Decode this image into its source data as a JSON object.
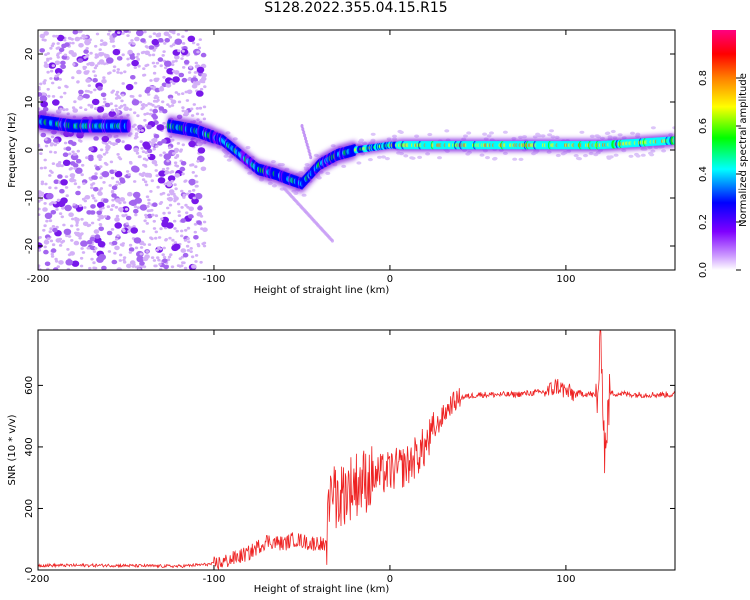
{
  "title": "S128.2022.355.04.15.R15",
  "chart_data": [
    {
      "type": "heatmap",
      "xlabel": "Height of straight line (km)",
      "ylabel": "Frequency (Hz)",
      "xlim": [
        -200,
        162
      ],
      "ylim": [
        -25,
        25
      ],
      "xticks": [
        -200,
        -100,
        0,
        100
      ],
      "yticks": [
        20,
        10,
        0,
        -10,
        -20
      ],
      "colorbar": {
        "label": "Normalized spectral amplitude",
        "range": [
          0,
          1
        ],
        "ticks": [
          0.0,
          0.2,
          0.4,
          0.6,
          0.8
        ],
        "colors": [
          "#ffffff",
          "#cc99ff",
          "#7f00ff",
          "#0000ff",
          "#00ffff",
          "#00ff00",
          "#ffff00",
          "#ff8000",
          "#ff0000",
          "#ff0080"
        ]
      },
      "ridge": [
        {
          "x": -200,
          "y": 6
        },
        {
          "x": -180,
          "y": 5
        },
        {
          "x": -160,
          "y": 5
        },
        {
          "x": -150,
          "y": 5
        },
        {
          "x": -125,
          "y": 5
        },
        {
          "x": -110,
          "y": 4
        },
        {
          "x": -95,
          "y": 2
        },
        {
          "x": -85,
          "y": -1
        },
        {
          "x": -75,
          "y": -4
        },
        {
          "x": -65,
          "y": -5
        },
        {
          "x": -58,
          "y": -6
        },
        {
          "x": -50,
          "y": -7
        },
        {
          "x": -45,
          "y": -5
        },
        {
          "x": -40,
          "y": -3
        },
        {
          "x": -30,
          "y": -1
        },
        {
          "x": -20,
          "y": 0
        },
        {
          "x": 0,
          "y": 1
        },
        {
          "x": 40,
          "y": 1
        },
        {
          "x": 80,
          "y": 1
        },
        {
          "x": 120,
          "y": 1
        },
        {
          "x": 162,
          "y": 2
        }
      ]
    },
    {
      "type": "line",
      "xlabel": "Height of straight line (km)",
      "ylabel": "SNR (10 * v/v)",
      "xlim": [
        -200,
        162
      ],
      "ylim": [
        0,
        780
      ],
      "xticks": [
        -200,
        -100,
        0,
        100
      ],
      "yticks": [
        0,
        200,
        400,
        600
      ],
      "color": "#ee2222",
      "series": [
        {
          "x": [
            -200,
            -160,
            -120,
            -100,
            -95,
            -90,
            -85,
            -80,
            -75,
            -70,
            -65,
            -60,
            -55,
            -50,
            -45,
            -40,
            -36,
            -33,
            -30,
            -25,
            -20,
            -15,
            -10,
            -5,
            0,
            5,
            10,
            15,
            20,
            25,
            30,
            35,
            40,
            50,
            60,
            70,
            80,
            90,
            95,
            100,
            105,
            110,
            115,
            118,
            120,
            122,
            125,
            140,
            160
          ],
          "y": [
            15,
            15,
            12,
            20,
            25,
            35,
            45,
            55,
            75,
            95,
            90,
            85,
            100,
            95,
            85,
            90,
            70,
            300,
            230,
            260,
            280,
            290,
            300,
            310,
            320,
            330,
            340,
            370,
            400,
            450,
            500,
            540,
            560,
            570,
            570,
            570,
            575,
            580,
            600,
            580,
            570,
            575,
            570,
            560,
            760,
            380,
            575,
            570,
            570
          ]
        }
      ]
    }
  ]
}
